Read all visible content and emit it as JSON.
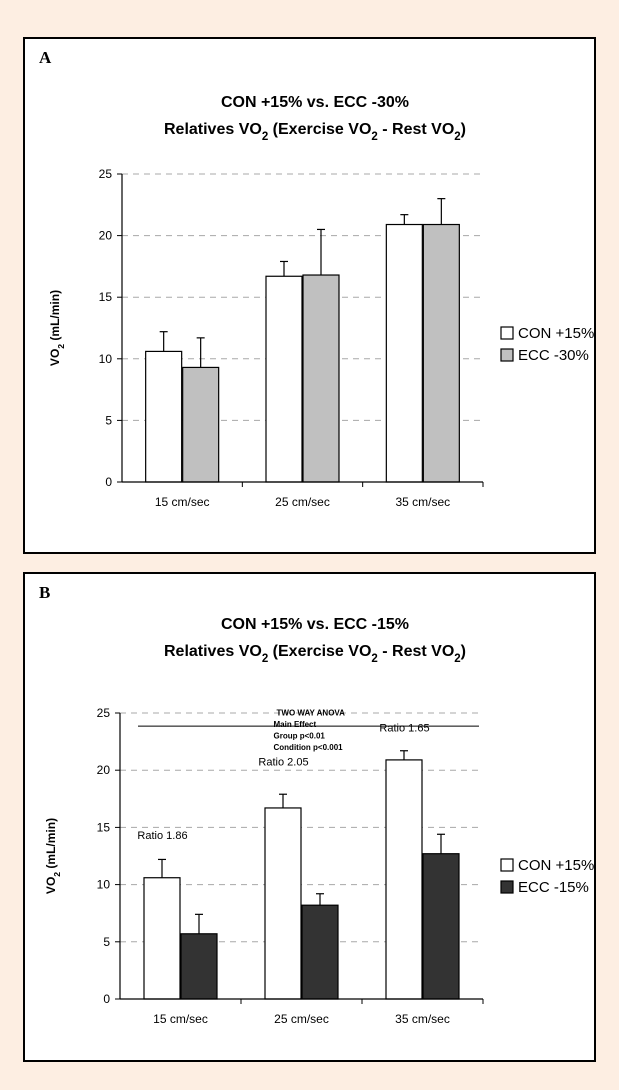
{
  "chart_data": [
    {
      "type": "bar",
      "panel_label": "A",
      "title": "CON +15% vs. ECC -30%",
      "subtitle": {
        "prefix": "Relatives VO",
        "sub1": "2",
        "mid": " (Exercise VO",
        "sub2": "2",
        "mid2": " - Rest VO",
        "sub3": "2",
        "suffix": ")"
      },
      "ylabel": {
        "prefix": "VO",
        "sub": "2",
        "suffix": " (mL/min)"
      },
      "categories": [
        "15 cm/sec",
        "25 cm/sec",
        "35 cm/sec"
      ],
      "ylim": [
        0,
        25
      ],
      "yticks": [
        "0",
        "5",
        "10",
        "15",
        "20",
        "25"
      ],
      "grid": true,
      "legend_position": "right",
      "series": [
        {
          "name": "CON +15%",
          "values": [
            10.6,
            16.7,
            20.9
          ],
          "errors": [
            1.6,
            1.2,
            0.8
          ],
          "color": "#ffffff"
        },
        {
          "name": "ECC -30%",
          "values": [
            9.3,
            16.8,
            20.9
          ],
          "errors": [
            2.4,
            3.7,
            2.1
          ],
          "color": "#c0c0c0"
        }
      ],
      "annotations": []
    },
    {
      "type": "bar",
      "panel_label": "B",
      "title": "CON +15% vs. ECC -15%",
      "subtitle": {
        "prefix": "Relatives VO",
        "sub1": "2",
        "mid": " (Exercise VO",
        "sub2": "2",
        "mid2": " - Rest VO",
        "sub3": "2",
        "suffix": ")"
      },
      "ylabel": {
        "prefix": "VO",
        "sub": "2",
        "suffix": " (mL/min)"
      },
      "categories": [
        "15 cm/sec",
        "25 cm/sec",
        "35 cm/sec"
      ],
      "ylim": [
        0,
        25
      ],
      "yticks": [
        "0",
        "5",
        "10",
        "15",
        "20",
        "25"
      ],
      "grid": true,
      "legend_position": "right",
      "series": [
        {
          "name": "CON +15%",
          "values": [
            10.6,
            16.7,
            20.9
          ],
          "errors": [
            1.6,
            1.2,
            0.8
          ],
          "color": "#ffffff"
        },
        {
          "name": "ECC -15%",
          "values": [
            5.7,
            8.2,
            12.7
          ],
          "errors": [
            1.7,
            1.0,
            1.7
          ],
          "color": "#333333"
        }
      ],
      "annotations": [
        {
          "text": "Ratio 1.86",
          "category": 0,
          "y": 14.0
        },
        {
          "text": "Ratio 2.05",
          "category": 1,
          "y": 20.4
        },
        {
          "text": "Ratio 1.65",
          "category": 2,
          "y": 23.4
        }
      ],
      "anova": [
        "TWO WAY ANOVA",
        "Main Effect",
        "Group    p<0.01",
        "Condition p<0.001"
      ]
    }
  ]
}
